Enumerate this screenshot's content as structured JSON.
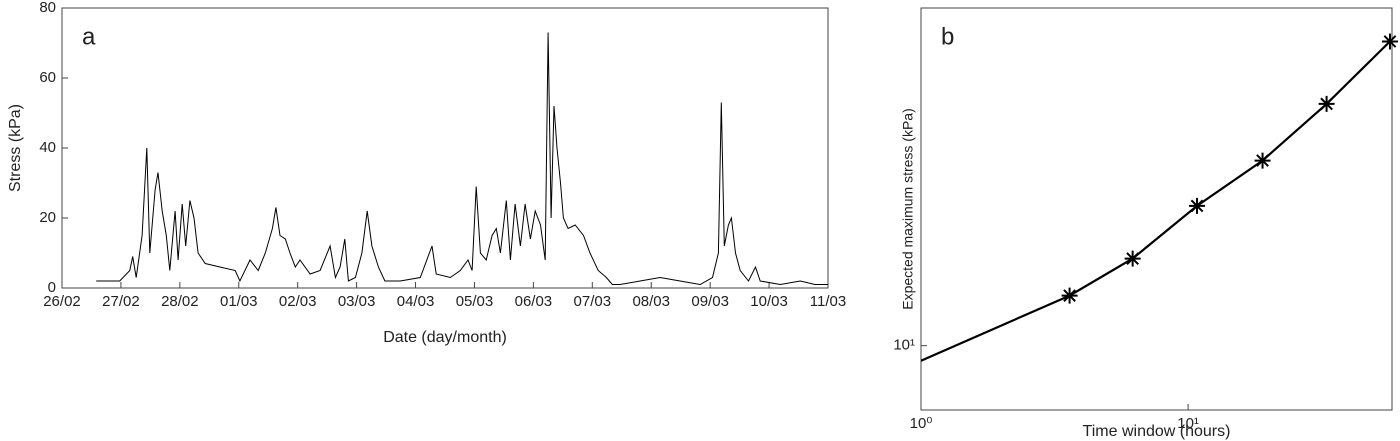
{
  "chart_data": [
    {
      "type": "line",
      "annotation": "a",
      "xlabel": "Date (day/month)",
      "ylabel": "Stress (kPa)",
      "xlim": [
        0,
        13
      ],
      "ylim": [
        0,
        80
      ],
      "xticks": [
        {
          "value": 0,
          "label": "26/02"
        },
        {
          "value": 1,
          "label": "27/02"
        },
        {
          "value": 2,
          "label": "28/02"
        },
        {
          "value": 3,
          "label": "01/03"
        },
        {
          "value": 4,
          "label": "02/03"
        },
        {
          "value": 5,
          "label": "03/03"
        },
        {
          "value": 6,
          "label": "04/03"
        },
        {
          "value": 7,
          "label": "05/03"
        },
        {
          "value": 8,
          "label": "06/03"
        },
        {
          "value": 9,
          "label": "07/03"
        },
        {
          "value": 10,
          "label": "08/03"
        },
        {
          "value": 11,
          "label": "09/03"
        },
        {
          "value": 12,
          "label": "10/03"
        },
        {
          "value": 13,
          "label": "11/03"
        }
      ],
      "yticks": [
        0,
        20,
        40,
        60,
        80
      ],
      "series": [
        {
          "color": "#000000",
          "marker": false,
          "x": [
            0.58,
            0.98,
            1.15,
            1.2,
            1.26,
            1.36,
            1.44,
            1.49,
            1.58,
            1.63,
            1.7,
            1.77,
            1.83,
            1.92,
            1.97,
            2.04,
            2.1,
            2.17,
            2.24,
            2.31,
            2.43,
            2.68,
            2.94,
            3.02,
            3.19,
            3.33,
            3.45,
            3.57,
            3.63,
            3.7,
            3.79,
            3.87,
            3.96,
            4.04,
            4.21,
            4.38,
            4.55,
            4.64,
            4.72,
            4.8,
            4.86,
            4.98,
            5.09,
            5.18,
            5.26,
            5.37,
            5.48,
            5.74,
            6.08,
            6.28,
            6.35,
            6.59,
            6.76,
            6.89,
            6.96,
            7.03,
            7.1,
            7.2,
            7.3,
            7.37,
            7.44,
            7.54,
            7.61,
            7.69,
            7.78,
            7.86,
            7.95,
            8.03,
            8.12,
            8.2,
            8.25,
            8.3,
            8.35,
            8.4,
            8.46,
            8.51,
            8.59,
            8.71,
            8.85,
            8.96,
            9.1,
            9.24,
            9.34,
            9.47,
            9.81,
            10.15,
            10.49,
            10.83,
            11.04,
            11.14,
            11.19,
            11.24,
            11.31,
            11.36,
            11.43,
            11.51,
            11.65,
            11.77,
            11.85,
            12.19,
            12.53,
            12.78,
            13
          ],
          "values": [
            2,
            2,
            5,
            9,
            3,
            15,
            40,
            10,
            28,
            33,
            22,
            15,
            5,
            22,
            8,
            24,
            12,
            25,
            20,
            10,
            7,
            6,
            5,
            2,
            8,
            5,
            10,
            17,
            23,
            15,
            14,
            10,
            6,
            8,
            4,
            5,
            12,
            3,
            6,
            14,
            2,
            3,
            10,
            22,
            12,
            6,
            2,
            2,
            3,
            12,
            4,
            3,
            5,
            8,
            5,
            29,
            10,
            8,
            15,
            17,
            10,
            25,
            8,
            24,
            12,
            24,
            14,
            22,
            18,
            8,
            73,
            20,
            52,
            40,
            30,
            20,
            17,
            18,
            15,
            10,
            5,
            3,
            1,
            1,
            2,
            3,
            2,
            1,
            3,
            10,
            53,
            12,
            18,
            20,
            10,
            5,
            2,
            6,
            2,
            1,
            2,
            1,
            1
          ]
        }
      ]
    },
    {
      "type": "line",
      "log_x": true,
      "log_y": true,
      "annotation": "b",
      "xlabel": "Time window (hours)",
      "ylabel": "Expected maximum stress (kPa)",
      "xlim": [
        1,
        58
      ],
      "ylim": [
        7,
        65
      ],
      "xticks": [
        {
          "value": 1,
          "label": "10⁰"
        },
        {
          "value": 10,
          "label": "10¹"
        }
      ],
      "yticks": [
        {
          "value": 10,
          "label": "10¹"
        }
      ],
      "series": [
        {
          "color": "#000000",
          "marker": false,
          "x": [
            1,
            3.6,
            6.2,
            10.8,
            19,
            33,
            57
          ],
          "values": [
            9.2,
            13.2,
            16.2,
            21.7,
            27.9,
            38.2,
            54
          ]
        },
        {
          "color": "#000000",
          "marker": true,
          "x": [
            3.6,
            6.2,
            10.8,
            19,
            33,
            57
          ],
          "values": [
            13.2,
            16.2,
            21.7,
            27.9,
            38.2,
            54
          ]
        }
      ]
    }
  ]
}
